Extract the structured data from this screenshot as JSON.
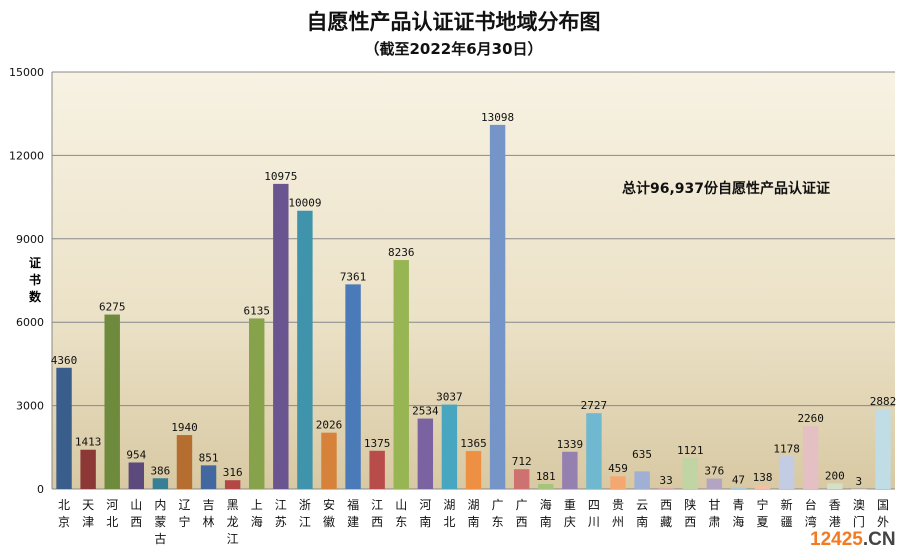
{
  "chart_data": {
    "type": "bar",
    "title": "自愿性产品认证证书地域分布图",
    "subtitle": "（截至2022年6月30日）",
    "ylabel": "证书数",
    "xlabel": "",
    "ylim": [
      0,
      15000
    ],
    "yticks": [
      0,
      3000,
      6000,
      9000,
      12000,
      15000
    ],
    "grid": true,
    "annotation": "总计96,937份自愿性产品认证证",
    "categories": [
      "北京",
      "天津",
      "河北",
      "山西",
      "内蒙古",
      "辽宁",
      "吉林",
      "黑龙江",
      "上海",
      "江苏",
      "浙江",
      "安徽",
      "福建",
      "江西",
      "山东",
      "河南",
      "湖北",
      "湖南",
      "广东",
      "广西",
      "海南",
      "重庆",
      "四川",
      "贵州",
      "云南",
      "西藏",
      "陕西",
      "甘肃",
      "青海",
      "宁夏",
      "新疆",
      "台湾",
      "香港",
      "澳门",
      "国外"
    ],
    "values": [
      4360,
      1413,
      6275,
      954,
      386,
      1940,
      851,
      316,
      6135,
      10975,
      10009,
      2026,
      7361,
      1375,
      8236,
      2534,
      3037,
      1365,
      13098,
      712,
      181,
      1339,
      2727,
      459,
      635,
      33,
      1121,
      376,
      47,
      138,
      1178,
      2260,
      200,
      3,
      2882
    ],
    "colors": [
      "#3a5e8c",
      "#8c3836",
      "#6e8a3c",
      "#5c4a7c",
      "#367f94",
      "#b56d30",
      "#4368a0",
      "#b34745",
      "#86a24a",
      "#6b5590",
      "#3f94ac",
      "#d6823a",
      "#4a7ab8",
      "#b84c4a",
      "#98b554",
      "#7b62a0",
      "#48a6c0",
      "#ee9044",
      "#7594c8",
      "#cd7270",
      "#a6c47c",
      "#9481b0",
      "#6fb8d0",
      "#f4a870",
      "#9fb0d4",
      "#d8a8a8",
      "#c0d4a4",
      "#b4a4c4",
      "#a4ccd8",
      "#f4c0a4",
      "#c4cce4",
      "#e4c0c4",
      "#d4e0c8",
      "#d4d0dc",
      "#c0dce4"
    ]
  },
  "watermark": {
    "main": "12425",
    ".cn": ".CN"
  }
}
